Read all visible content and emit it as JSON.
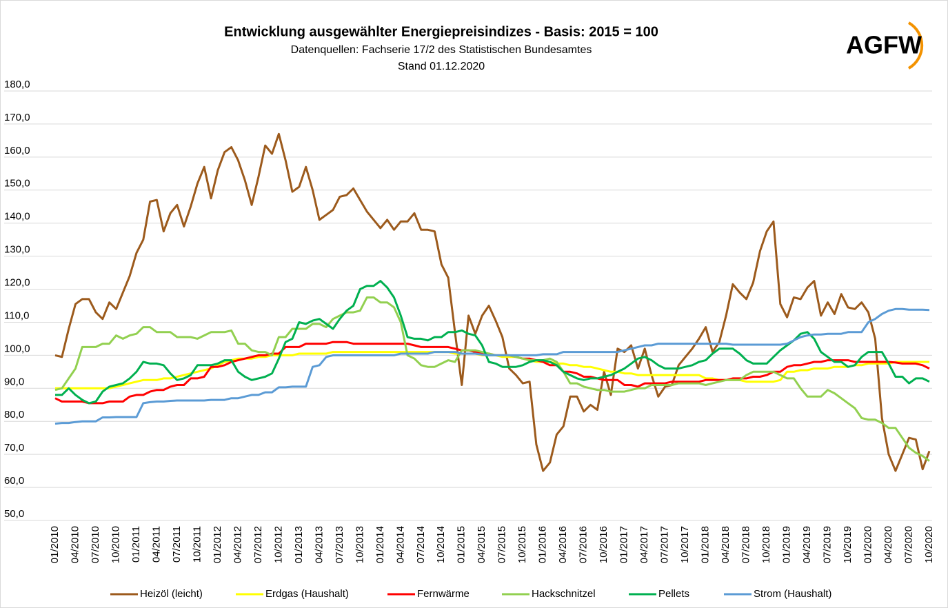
{
  "chart_data": {
    "type": "line",
    "title": "Entwicklung ausgewählter Energiepreisindizes - Basis: 2015 = 100",
    "subtitle": [
      "Datenquellen:  Fachserie 17/2 des Statistischen Bundesamtes",
      "Stand 01.12.2020"
    ],
    "logo": "AGFW",
    "grid": true,
    "legend": "bottom",
    "ylim": [
      50,
      180
    ],
    "yticks": [
      {
        "value": 50,
        "label": "50,0"
      },
      {
        "value": 60,
        "label": "60,0"
      },
      {
        "value": 70,
        "label": "70,0"
      },
      {
        "value": 80,
        "label": "80,0"
      },
      {
        "value": 90,
        "label": "90,0"
      },
      {
        "value": 100,
        "label": "100,0"
      },
      {
        "value": 110,
        "label": "110,0"
      },
      {
        "value": 120,
        "label": "120,0"
      },
      {
        "value": 130,
        "label": "130,0"
      },
      {
        "value": 140,
        "label": "140,0"
      },
      {
        "value": 150,
        "label": "150,0"
      },
      {
        "value": 160,
        "label": "160,0"
      },
      {
        "value": 170,
        "label": "170,0"
      },
      {
        "value": 180,
        "label": "180,0"
      }
    ],
    "categories": [
      "01/2010",
      null,
      null,
      "04/2010",
      null,
      null,
      "07/2010",
      null,
      null,
      "10/2010",
      null,
      null,
      "01/2011",
      null,
      null,
      "04/2011",
      null,
      null,
      "07/2011",
      null,
      null,
      "10/2011",
      null,
      null,
      "01/2012",
      null,
      null,
      "04/2012",
      null,
      null,
      "07/2012",
      null,
      null,
      "10/2012",
      null,
      null,
      "01/2013",
      null,
      null,
      "04/2013",
      null,
      null,
      "07/2013",
      null,
      null,
      "10/2013",
      null,
      null,
      "01/2014",
      null,
      null,
      "04/2014",
      null,
      null,
      "07/2014",
      null,
      null,
      "10/2014",
      null,
      null,
      "01/2015",
      null,
      null,
      "04/2015",
      null,
      null,
      "07/2015",
      null,
      null,
      "10/2015",
      null,
      null,
      "01/2016",
      null,
      null,
      "04/2016",
      null,
      null,
      "07/2016",
      null,
      null,
      "10/2016",
      null,
      null,
      "01/2017",
      null,
      null,
      "04/2017",
      null,
      null,
      "07/2017",
      null,
      null,
      "10/2017",
      null,
      null,
      "01/2018",
      null,
      null,
      "04/2018",
      null,
      null,
      "07/2018",
      null,
      null,
      "10/2018",
      null,
      null,
      "01/2019",
      null,
      null,
      "04/2019",
      null,
      null,
      "07/2019",
      null,
      null,
      "10/2019",
      null,
      null,
      "01/2020",
      null,
      null,
      "04/2020",
      null,
      null,
      "07/2020",
      null,
      null,
      "10/2020"
    ],
    "series": [
      {
        "name": "Heizöl (leicht)",
        "color": "#9c5a1c",
        "values": [
          100,
          99.5,
          108,
          115.5,
          117,
          117,
          113,
          111,
          116,
          114,
          119,
          124,
          131,
          135,
          146.5,
          147,
          137.5,
          143,
          145.5,
          139,
          145,
          152,
          157,
          147.5,
          156,
          161.5,
          163,
          159,
          153,
          145.5,
          154,
          163.5,
          161,
          167,
          159,
          149.5,
          151,
          157,
          150,
          141,
          142.5,
          144,
          148,
          148.5,
          150.5,
          147,
          143.5,
          141,
          138.5,
          141,
          138,
          140.5,
          140.5,
          143,
          138,
          138,
          137.5,
          127.5,
          123.5,
          107,
          91,
          112,
          106.5,
          112,
          115,
          110.5,
          105.5,
          96,
          94,
          91.5,
          92,
          73,
          65,
          67.5,
          76,
          78.5,
          87.5,
          87.5,
          83,
          85,
          83.5,
          95,
          88,
          102,
          101,
          103,
          96,
          102,
          94,
          87.5,
          90.5,
          91,
          97,
          99.5,
          102,
          105,
          108.5,
          101,
          104,
          112,
          121.5,
          119,
          117,
          122,
          131.5,
          137.5,
          140.5,
          115.5,
          111.5,
          117.5,
          117,
          120.5,
          122.5,
          112,
          116,
          112.5,
          118.5,
          114.5,
          114,
          116,
          113,
          105,
          81,
          70,
          65,
          70,
          75,
          74.5,
          65.5,
          71
        ]
      },
      {
        "name": "Erdgas (Haushalt)",
        "color": "#ffff00",
        "values": [
          90,
          90,
          90,
          90,
          90,
          90,
          90,
          90,
          90,
          90.5,
          91,
          91.5,
          92,
          92.5,
          92.5,
          92.5,
          93,
          93,
          93.5,
          94,
          94.5,
          95,
          95.5,
          96,
          97,
          98,
          98.5,
          99,
          99,
          99,
          99.5,
          99.5,
          100,
          100,
          100,
          100,
          100.5,
          100.5,
          100.5,
          100.5,
          100.5,
          101,
          101,
          101,
          101,
          101,
          101,
          101,
          101,
          101,
          101,
          101,
          101,
          101,
          101,
          101,
          101,
          101,
          101,
          100.5,
          100.5,
          100.5,
          100.5,
          100,
          100,
          100,
          99.5,
          99.5,
          99.5,
          99,
          98.5,
          98,
          98,
          98,
          97.5,
          97.5,
          97,
          97,
          96.5,
          96.5,
          96,
          95.5,
          95,
          95,
          94.5,
          94.5,
          94,
          94,
          94,
          94,
          94,
          94,
          94,
          94,
          94,
          94,
          93,
          93,
          92.5,
          92.5,
          92.5,
          92.5,
          92,
          92,
          92,
          92,
          92,
          92.5,
          95,
          95,
          95.5,
          95.5,
          96,
          96,
          96,
          96.5,
          96.5,
          96.5,
          97,
          97,
          97.5,
          97.5,
          97.5,
          97.5,
          98,
          98,
          98,
          98,
          98,
          98
        ]
      },
      {
        "name": "Fernwärme",
        "color": "#ff0000",
        "values": [
          87,
          86,
          86,
          86,
          86,
          85.5,
          85.5,
          85.5,
          86,
          86,
          86,
          87.5,
          88,
          88,
          89,
          89.5,
          89.5,
          90.5,
          91,
          91,
          93,
          93,
          93.5,
          96.5,
          96.5,
          97,
          98,
          98.5,
          99,
          99.5,
          100,
          100,
          100.5,
          100.5,
          102.5,
          102.5,
          102.5,
          103.5,
          103.5,
          103.5,
          103.5,
          104,
          104,
          104,
          103.5,
          103.5,
          103.5,
          103.5,
          103.5,
          103.5,
          103.5,
          103.5,
          103.5,
          103,
          102.5,
          102.5,
          102.5,
          102.5,
          102.5,
          102,
          101.5,
          101.5,
          101,
          100.5,
          100.5,
          100,
          100,
          100,
          99.5,
          99,
          99,
          98.5,
          98,
          97,
          97,
          95,
          95,
          94.5,
          93.5,
          93.5,
          93,
          92.5,
          92.5,
          92.5,
          91,
          91,
          90.5,
          91.5,
          91.5,
          91.5,
          91.5,
          92,
          92,
          92,
          92,
          92,
          92.5,
          92.5,
          92.5,
          92.5,
          93,
          93,
          93,
          93.5,
          93.5,
          94,
          95,
          95,
          96.5,
          97,
          97,
          97.5,
          98,
          98,
          98.5,
          98.5,
          98.5,
          98.5,
          98,
          98,
          98,
          98,
          98,
          98,
          97.8,
          97.5,
          97.5,
          97.5,
          97,
          96
        ]
      },
      {
        "name": "Hackschnitzel",
        "color": "#92d050",
        "values": [
          89.5,
          90,
          93,
          96,
          102.5,
          102.5,
          102.5,
          103.5,
          103.5,
          106,
          105,
          106,
          106.5,
          108.5,
          108.5,
          107,
          107,
          107,
          105.5,
          105.5,
          105.5,
          105,
          106,
          107,
          107,
          107,
          107.5,
          103.5,
          103.5,
          101.5,
          101,
          101,
          100,
          105.5,
          105.5,
          108,
          108,
          108,
          109.5,
          109.5,
          108.5,
          111,
          112,
          113,
          113,
          113.5,
          117.5,
          117.5,
          116,
          116,
          114.5,
          110,
          100,
          99,
          97,
          96.5,
          96.5,
          97.5,
          98.5,
          98,
          101.5,
          101.5,
          101.5,
          101,
          100.5,
          100,
          100,
          100,
          99.5,
          99,
          98.5,
          98.5,
          98.5,
          99,
          98,
          95,
          91.5,
          91.5,
          90.5,
          90,
          89.5,
          89.5,
          89,
          89,
          89,
          89.5,
          90,
          90,
          91,
          91,
          91,
          91,
          91.5,
          91.5,
          91.5,
          91.5,
          91,
          91.5,
          92,
          92.5,
          92.5,
          92.5,
          94,
          95,
          95,
          95,
          95,
          94,
          93,
          93,
          90,
          87.5,
          87.5,
          87.5,
          89.5,
          88.5,
          87,
          85.5,
          84,
          81,
          80.5,
          80.5,
          79.5,
          78,
          78,
          75,
          72,
          70.5,
          69.5,
          68
        ]
      },
      {
        "name": "Pellets",
        "color": "#00b050",
        "values": [
          88,
          88,
          90,
          88,
          86.5,
          85.5,
          86,
          89,
          90.5,
          91,
          91.5,
          93,
          95,
          98,
          97.5,
          97.5,
          97,
          94.5,
          92.5,
          93,
          94,
          97,
          97,
          97,
          97.5,
          98.5,
          98.5,
          95,
          93.5,
          92.5,
          93,
          93.5,
          94.5,
          99,
          104,
          105,
          110,
          109.5,
          110.5,
          111,
          109.5,
          108,
          111,
          113.5,
          115,
          120,
          121,
          121,
          122.5,
          120.5,
          117.5,
          112,
          105.5,
          105,
          105,
          104.5,
          105.5,
          105.5,
          107,
          107,
          107.5,
          106.5,
          106,
          103,
          98,
          97.5,
          96.5,
          96.5,
          96.5,
          97,
          98,
          98.5,
          98.5,
          98,
          97,
          95,
          94,
          93,
          92.5,
          93,
          93,
          93.5,
          94,
          95,
          96,
          97.5,
          99,
          99.5,
          98.5,
          97,
          96,
          96,
          96,
          96.5,
          97,
          98,
          98.5,
          100.5,
          102,
          102,
          102,
          100.5,
          98.5,
          97.5,
          97.5,
          97.5,
          99.5,
          101.5,
          103,
          104.5,
          106.5,
          107,
          105,
          101,
          99.5,
          98,
          98,
          96.5,
          97,
          99.5,
          101,
          101,
          101,
          97.5,
          93.5,
          93.5,
          91.5,
          93,
          93,
          92
        ]
      },
      {
        "name": "Strom (Haushalt)",
        "color": "#5b9bd5",
        "values": [
          79.3,
          79.5,
          79.5,
          79.8,
          80,
          80,
          80,
          81.2,
          81.2,
          81.3,
          81.3,
          81.3,
          81.3,
          85.5,
          85.8,
          86,
          86,
          86.2,
          86.3,
          86.3,
          86.3,
          86.3,
          86.3,
          86.5,
          86.5,
          86.5,
          87,
          87,
          87.5,
          88,
          88,
          88.8,
          88.8,
          90.3,
          90.3,
          90.5,
          90.5,
          90.5,
          96.5,
          97,
          99.5,
          100,
          100,
          100,
          100,
          100,
          100,
          100,
          100,
          100,
          100,
          100.5,
          100.5,
          100.5,
          100.5,
          100.5,
          101,
          101,
          101,
          101,
          100.5,
          100.5,
          100.5,
          100.2,
          100,
          100,
          100,
          100,
          100,
          100,
          100,
          100,
          100.3,
          100.3,
          100.3,
          101,
          101,
          101,
          101,
          101,
          101,
          101,
          101,
          101,
          101.5,
          102,
          102.5,
          103,
          103,
          103.5,
          103.5,
          103.5,
          103.5,
          103.5,
          103.5,
          103.5,
          103.5,
          103.5,
          103.5,
          103.5,
          103.2,
          103.2,
          103.2,
          103.2,
          103.2,
          103.2,
          103.2,
          103.2,
          103.5,
          104.5,
          105.5,
          106,
          106.3,
          106.3,
          106.5,
          106.5,
          106.5,
          107,
          107,
          107,
          110,
          111,
          112.5,
          113.5,
          114,
          114,
          113.8,
          113.8,
          113.8,
          113.7
        ]
      }
    ]
  }
}
